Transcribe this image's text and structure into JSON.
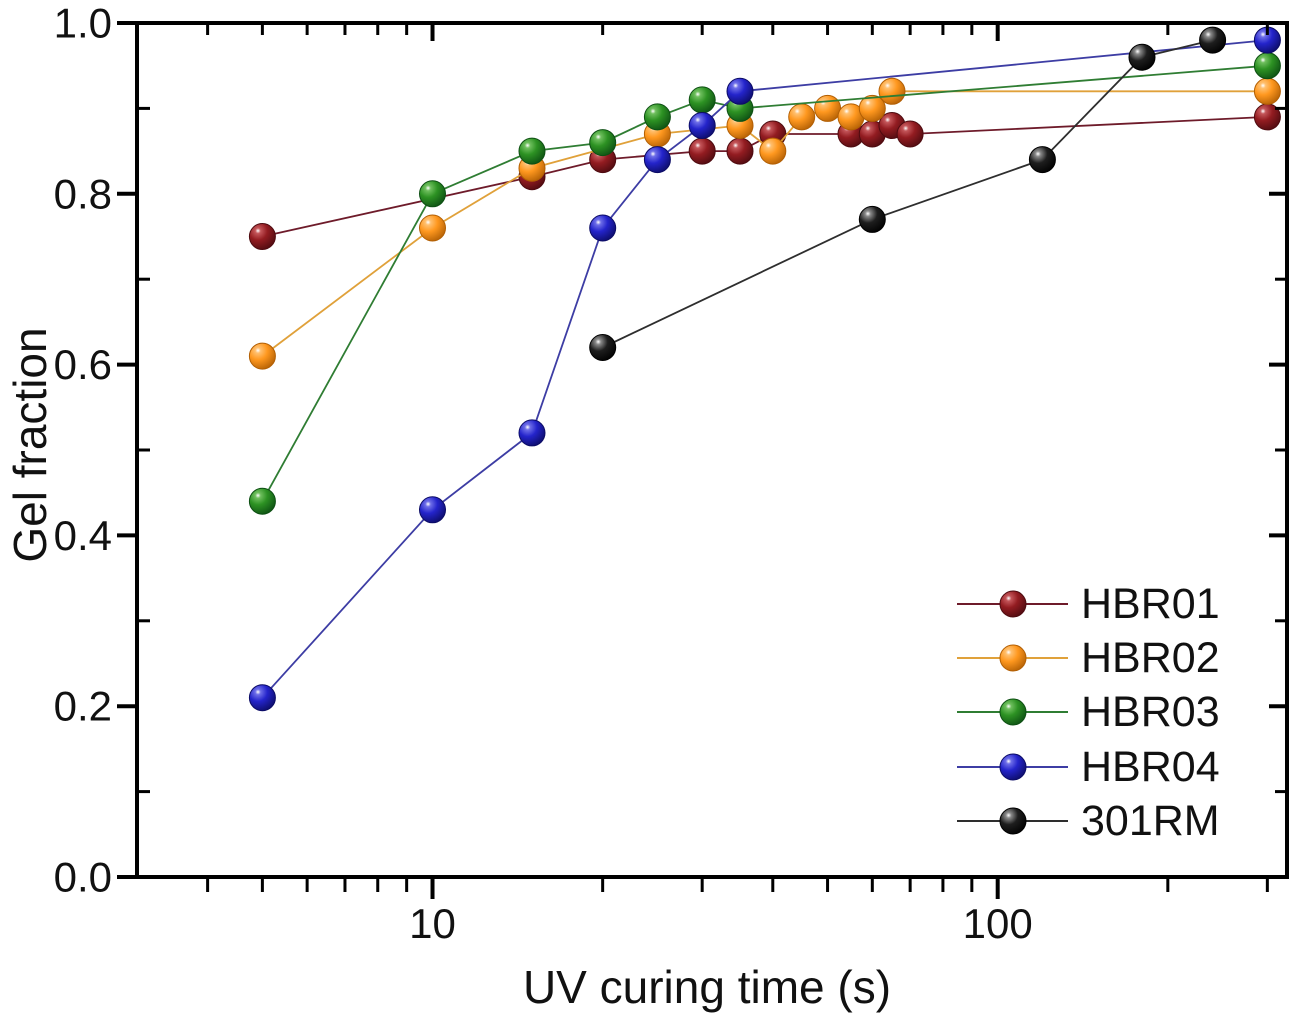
{
  "figure": {
    "background": "#ffffff",
    "text_color": "#111111",
    "axis_color": "#000000"
  },
  "chart_data": {
    "type": "scatter",
    "title": "",
    "xlabel": "UV curing time (s)",
    "ylabel": "Gel fraction",
    "x_scale": "log",
    "x_range": [
      3,
      325
    ],
    "y_range": [
      0.0,
      1.0
    ],
    "grid": false,
    "legend_position": "bottom-right",
    "x_major_ticks": [
      {
        "value": 10,
        "label": "10"
      },
      {
        "value": 100,
        "label": "100"
      }
    ],
    "x_minor_ticks": [
      4,
      5,
      6,
      7,
      8,
      9,
      20,
      30,
      40,
      50,
      60,
      70,
      80,
      90,
      200,
      300
    ],
    "y_major_ticks": [
      {
        "value": 0.0,
        "label": "0.0"
      },
      {
        "value": 0.2,
        "label": "0.2"
      },
      {
        "value": 0.4,
        "label": "0.4"
      },
      {
        "value": 0.6,
        "label": "0.6"
      },
      {
        "value": 0.8,
        "label": "0.8"
      },
      {
        "value": 1.0,
        "label": "1.0"
      }
    ],
    "y_minor_ticks": [
      0.1,
      0.3,
      0.5,
      0.7,
      0.9
    ],
    "series": [
      {
        "name": "HBR01",
        "marker_color": "#931c21",
        "marker_light": "#c4565a",
        "marker_dark": "#4e0b10",
        "line_color": "#6e1b2a",
        "points": [
          [
            5,
            0.75
          ],
          [
            15,
            0.82
          ],
          [
            20,
            0.84
          ],
          [
            30,
            0.85
          ],
          [
            35,
            0.85
          ],
          [
            40,
            0.87
          ],
          [
            55,
            0.87
          ],
          [
            60,
            0.87
          ],
          [
            65,
            0.88
          ],
          [
            70,
            0.87
          ],
          [
            300,
            0.89
          ]
        ]
      },
      {
        "name": "HBR02",
        "marker_color": "#ff981f",
        "marker_light": "#ffc070",
        "marker_dark": "#b25f04",
        "line_color": "#e0a13a",
        "points": [
          [
            5,
            0.61
          ],
          [
            10,
            0.76
          ],
          [
            15,
            0.83
          ],
          [
            25,
            0.87
          ],
          [
            35,
            0.88
          ],
          [
            40,
            0.85
          ],
          [
            45,
            0.89
          ],
          [
            50,
            0.9
          ],
          [
            55,
            0.89
          ],
          [
            60,
            0.9
          ],
          [
            65,
            0.92
          ],
          [
            300,
            0.92
          ]
        ]
      },
      {
        "name": "HBR03",
        "marker_color": "#2d9223",
        "marker_light": "#6fbf5e",
        "marker_dark": "#0d4f13",
        "line_color": "#2f7d33",
        "points": [
          [
            5,
            0.44
          ],
          [
            10,
            0.8
          ],
          [
            15,
            0.85
          ],
          [
            20,
            0.86
          ],
          [
            25,
            0.89
          ],
          [
            30,
            0.91
          ],
          [
            35,
            0.9
          ],
          [
            300,
            0.95
          ]
        ]
      },
      {
        "name": "HBR04",
        "marker_color": "#2424cb",
        "marker_light": "#6e6ee8",
        "marker_dark": "#0c0c66",
        "line_color": "#3d3da4",
        "points": [
          [
            5,
            0.21
          ],
          [
            10,
            0.43
          ],
          [
            15,
            0.52
          ],
          [
            20,
            0.76
          ],
          [
            25,
            0.84
          ],
          [
            30,
            0.88
          ],
          [
            35,
            0.92
          ],
          [
            300,
            0.98
          ]
        ]
      },
      {
        "name": "301RM",
        "marker_color": "#1e1e1e",
        "marker_light": "#8a8a8a",
        "marker_dark": "#000000",
        "line_color": "#2e2e2e",
        "points": [
          [
            20,
            0.62
          ],
          [
            60,
            0.77
          ],
          [
            120,
            0.84
          ],
          [
            180,
            0.96
          ],
          [
            240,
            0.98
          ]
        ]
      }
    ]
  }
}
